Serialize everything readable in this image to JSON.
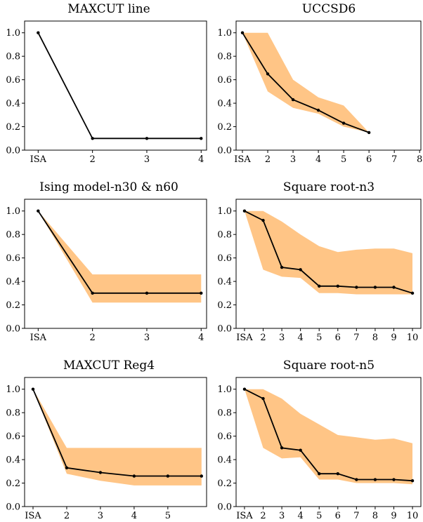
{
  "chart_data": [
    {
      "type": "line",
      "title": "MAXCUT line",
      "xlim": [
        0.75,
        4.1
      ],
      "ylim": [
        0,
        1.1
      ],
      "xticks": [
        1,
        2,
        3,
        4
      ],
      "xticklabels": [
        "ISA",
        "2",
        "3",
        "4"
      ],
      "yticks": [
        0.0,
        0.2,
        0.4,
        0.6,
        0.8,
        1.0
      ],
      "yticklabels": [
        "0.0",
        "0.2",
        "0.4",
        "0.6",
        "0.8",
        "1.0"
      ],
      "x": [
        1,
        2,
        3,
        4
      ],
      "mean": [
        1.0,
        0.1,
        0.1,
        0.1
      ],
      "lower": null,
      "upper": null,
      "band_color": "#ffc586",
      "line_color": "#000000"
    },
    {
      "type": "line",
      "title": "UCCSD6",
      "xlim": [
        0.75,
        8.05
      ],
      "ylim": [
        0,
        1.1
      ],
      "xticks": [
        1,
        2,
        3,
        4,
        5,
        6,
        7,
        8
      ],
      "xticklabels": [
        "ISA",
        "2",
        "3",
        "4",
        "5",
        "6",
        "7",
        "8"
      ],
      "yticks": [
        0.0,
        0.2,
        0.4,
        0.6,
        0.8,
        1.0
      ],
      "yticklabels": [
        "0.0",
        "0.2",
        "0.4",
        "0.6",
        "0.8",
        "1.0"
      ],
      "x": [
        1,
        2,
        3,
        4,
        5,
        6
      ],
      "mean": [
        1.0,
        0.65,
        0.43,
        0.34,
        0.23,
        0.15
      ],
      "lower": [
        1.0,
        0.5,
        0.36,
        0.31,
        0.2,
        0.15
      ],
      "upper": [
        1.0,
        1.0,
        0.6,
        0.45,
        0.38,
        0.15
      ],
      "band_color": "#ffc586",
      "line_color": "#000000"
    },
    {
      "type": "line",
      "title": "Ising model-n30 & n60",
      "xlim": [
        0.75,
        4.1
      ],
      "ylim": [
        0,
        1.1
      ],
      "xticks": [
        1,
        2,
        3,
        4
      ],
      "xticklabels": [
        "ISA",
        "2",
        "3",
        "4"
      ],
      "yticks": [
        0.0,
        0.2,
        0.4,
        0.6,
        0.8,
        1.0
      ],
      "yticklabels": [
        "0.0",
        "0.2",
        "0.4",
        "0.6",
        "0.8",
        "1.0"
      ],
      "x": [
        1,
        2,
        3,
        4
      ],
      "mean": [
        1.0,
        0.3,
        0.3,
        0.3
      ],
      "lower": [
        1.0,
        0.22,
        0.22,
        0.22
      ],
      "upper": [
        1.0,
        0.46,
        0.46,
        0.46
      ],
      "band_color": "#ffc586",
      "line_color": "#000000"
    },
    {
      "type": "line",
      "title": "Square root-n3",
      "xlim": [
        0.55,
        10.45
      ],
      "ylim": [
        0,
        1.1
      ],
      "xticks": [
        1,
        2,
        3,
        4,
        5,
        6,
        7,
        8,
        9,
        10
      ],
      "xticklabels": [
        "ISA",
        "2",
        "3",
        "4",
        "5",
        "6",
        "7",
        "8",
        "9",
        "10"
      ],
      "yticks": [
        0.0,
        0.2,
        0.4,
        0.6,
        0.8,
        1.0
      ],
      "yticklabels": [
        "0.0",
        "0.2",
        "0.4",
        "0.6",
        "0.8",
        "1.0"
      ],
      "x": [
        1,
        2,
        3,
        4,
        5,
        6,
        7,
        8,
        9,
        10
      ],
      "mean": [
        1.0,
        0.92,
        0.52,
        0.5,
        0.36,
        0.36,
        0.35,
        0.35,
        0.35,
        0.3
      ],
      "lower": [
        1.0,
        0.5,
        0.44,
        0.43,
        0.3,
        0.3,
        0.29,
        0.29,
        0.29,
        0.29
      ],
      "upper": [
        1.0,
        1.0,
        0.91,
        0.8,
        0.7,
        0.65,
        0.67,
        0.68,
        0.68,
        0.64
      ],
      "band_color": "#ffc586",
      "line_color": "#000000"
    },
    {
      "type": "line",
      "title": "MAXCUT Reg4",
      "xlim": [
        0.75,
        6.15
      ],
      "ylim": [
        0,
        1.1
      ],
      "xticks": [
        1,
        2,
        3,
        4,
        5
      ],
      "xticklabels": [
        "ISA",
        "2",
        "3",
        "4",
        "5"
      ],
      "yticks": [
        0.0,
        0.2,
        0.4,
        0.6,
        0.8,
        1.0
      ],
      "yticklabels": [
        "0.0",
        "0.2",
        "0.4",
        "0.6",
        "0.8",
        "1.0"
      ],
      "x": [
        1,
        2,
        3,
        4,
        5,
        6
      ],
      "mean": [
        1.0,
        0.33,
        0.29,
        0.26,
        0.26,
        0.26
      ],
      "lower": [
        1.0,
        0.28,
        0.22,
        0.18,
        0.18,
        0.18
      ],
      "upper": [
        1.0,
        0.5,
        0.5,
        0.5,
        0.5,
        0.5
      ],
      "band_color": "#ffc586",
      "line_color": "#000000"
    },
    {
      "type": "line",
      "title": "Square root-n5",
      "xlim": [
        0.55,
        10.45
      ],
      "ylim": [
        0,
        1.1
      ],
      "xticks": [
        1,
        2,
        3,
        4,
        5,
        6,
        7,
        8,
        9,
        10
      ],
      "xticklabels": [
        "ISA",
        "2",
        "3",
        "4",
        "5",
        "6",
        "7",
        "8",
        "9",
        "10"
      ],
      "yticks": [
        0.0,
        0.2,
        0.4,
        0.6,
        0.8,
        1.0
      ],
      "yticklabels": [
        "0.0",
        "0.2",
        "0.4",
        "0.6",
        "0.8",
        "1.0"
      ],
      "x": [
        1,
        2,
        3,
        4,
        5,
        6,
        7,
        8,
        9,
        10
      ],
      "mean": [
        1.0,
        0.92,
        0.5,
        0.48,
        0.28,
        0.28,
        0.23,
        0.23,
        0.23,
        0.22
      ],
      "lower": [
        1.0,
        0.5,
        0.41,
        0.42,
        0.23,
        0.23,
        0.2,
        0.2,
        0.2,
        0.19
      ],
      "upper": [
        1.0,
        1.0,
        0.92,
        0.79,
        0.7,
        0.61,
        0.59,
        0.57,
        0.58,
        0.54
      ],
      "band_color": "#ffc586",
      "line_color": "#000000"
    }
  ]
}
